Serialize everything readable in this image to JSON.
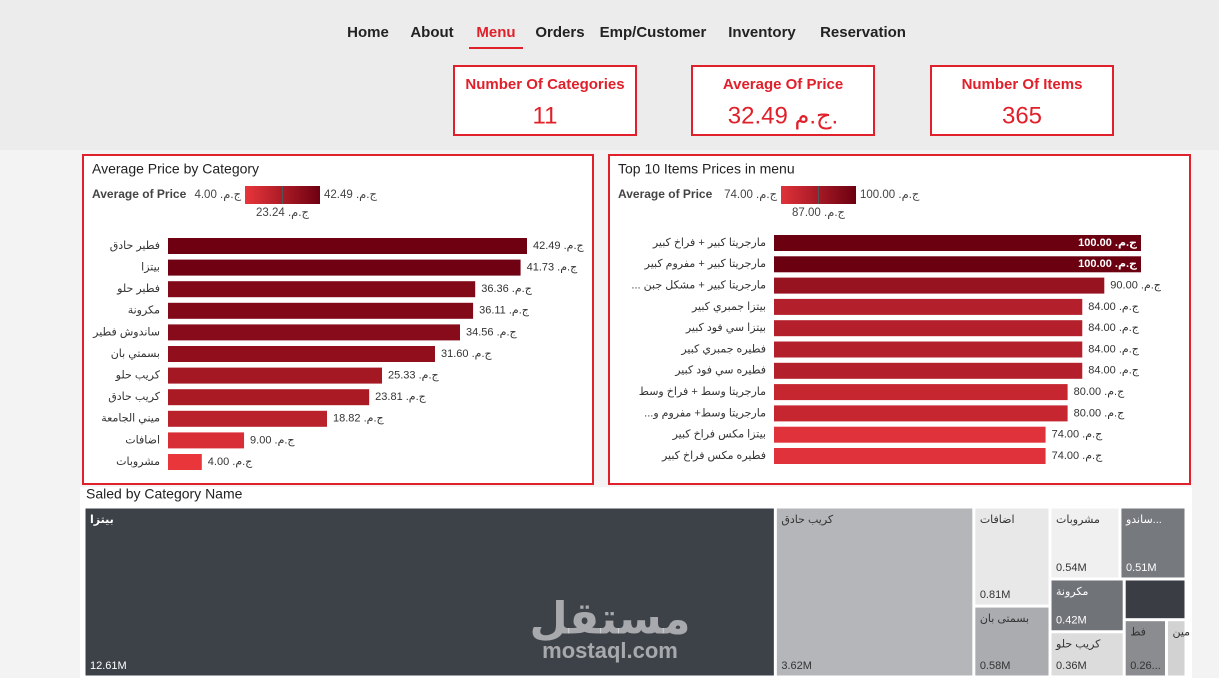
{
  "nav": [
    "Home",
    "About",
    "Menu",
    "Orders",
    "Emp/Customer",
    "Inventory",
    "Reservation"
  ],
  "nav_active": 2,
  "kpis": [
    {
      "title": "Number Of Categories",
      "value": "11"
    },
    {
      "title": "Average Of Price",
      "value": "32.49 ج.م."
    },
    {
      "title": "Number Of Items",
      "value": "365"
    }
  ],
  "watermark": [
    "مستقل",
    "mostaql.com"
  ],
  "chart_data": [
    {
      "type": "bar",
      "orientation": "horizontal",
      "title": "Average Price by Category",
      "legend_title": "Average of Price",
      "color_scale": [
        "#e8363b",
        "#6e0011"
      ],
      "legend_ticks": [
        {
          "value": 4.0,
          "label": "ج.م. 4.00"
        },
        {
          "value": 42.49,
          "label": "ج.م. 42.49"
        },
        {
          "value": 23.24,
          "label": "ج.م. 23.24"
        }
      ],
      "categories": [
        "فطير حادق",
        "بيتزا",
        "فطير حلو",
        "مكرونة",
        "ساندوش فطير",
        "بسمتي بان",
        "كريب حلو",
        "كريب حادق",
        "ميني الجامعة",
        "اضافات",
        "مشروبات"
      ],
      "values": [
        42.49,
        41.73,
        36.36,
        36.11,
        34.56,
        31.6,
        25.33,
        23.81,
        18.82,
        9.0,
        4.0
      ],
      "value_labels": [
        "ج.م. 42.49",
        "ج.م. 41.73",
        "ج.م. 36.36",
        "ج.م. 36.11",
        "ج.م. 34.56",
        "ج.م. 31.60",
        "ج.م. 25.33",
        "ج.م. 23.81",
        "ج.م. 18.82",
        "ج.م. 9.00",
        "ج.م. 4.00"
      ]
    },
    {
      "type": "bar",
      "orientation": "horizontal",
      "title": "Top 10 Items Prices in menu",
      "legend_title": "Average of Price",
      "color_scale": [
        "#e0323a",
        "#6b0010"
      ],
      "legend_ticks": [
        {
          "value": 74.0,
          "label": "ج.م. 74.00"
        },
        {
          "value": 100.0,
          "label": "ج.م. 100.00"
        },
        {
          "value": 87.0,
          "label": "ج.م. 87.00"
        }
      ],
      "categories": [
        "مارجريتا كبير + فراخ كبير",
        "مارجريتا كبير + مفروم كبير",
        "... مارجريتا كبير + مشكل جبن",
        "بيتزا جمبري كبير",
        "بيتزا سي فود كبير",
        "فطيره جمبري كبير",
        "فطيره سي فود كبير",
        "مارجريتا وسط + فراخ وسط",
        "...مارجريتا وسط+ مفروم و",
        "بيتزا مكس فراخ كبير",
        "فطيره مكس فراخ كبير"
      ],
      "values": [
        100.0,
        100.0,
        90.0,
        84.0,
        84.0,
        84.0,
        84.0,
        80.0,
        80.0,
        74.0,
        74.0
      ],
      "value_labels": [
        "ج.م. 100.00",
        "ج.م. 100.00",
        "ج.م. 90.00",
        "ج.م. 84.00",
        "ج.م. 84.00",
        "ج.م. 84.00",
        "ج.م. 84.00",
        "ج.م. 80.00",
        "ج.م. 80.00",
        "ج.م. 74.00",
        "ج.م. 74.00"
      ]
    },
    {
      "type": "treemap",
      "title": "Saled by Category Name",
      "categories": [
        "بيتزا",
        "كريب حادق",
        "اضافات",
        "بسمتى بان",
        "مشروبات",
        "ساندو...",
        "مكرونة",
        "كريب حلو",
        null,
        "فط",
        "مين"
      ],
      "values": [
        12.61,
        3.62,
        0.81,
        0.58,
        0.54,
        0.51,
        0.42,
        0.36,
        0.27,
        0.26,
        0.12
      ],
      "value_labels": [
        "12.61M",
        "3.62M",
        "0.81M",
        "0.58M",
        "0.54M",
        "0.51M",
        "0.42M",
        "0.36M",
        null,
        "0.26...",
        null
      ],
      "colors": [
        "#3d4148",
        "#b4b6b9",
        "#e8e8e8",
        "#aaacaf",
        "#f0f0f0",
        "#76797d",
        "#707377",
        "#dcdcdc",
        "#3a3d44",
        "#8a8c90",
        "#d2d2d2"
      ]
    }
  ]
}
